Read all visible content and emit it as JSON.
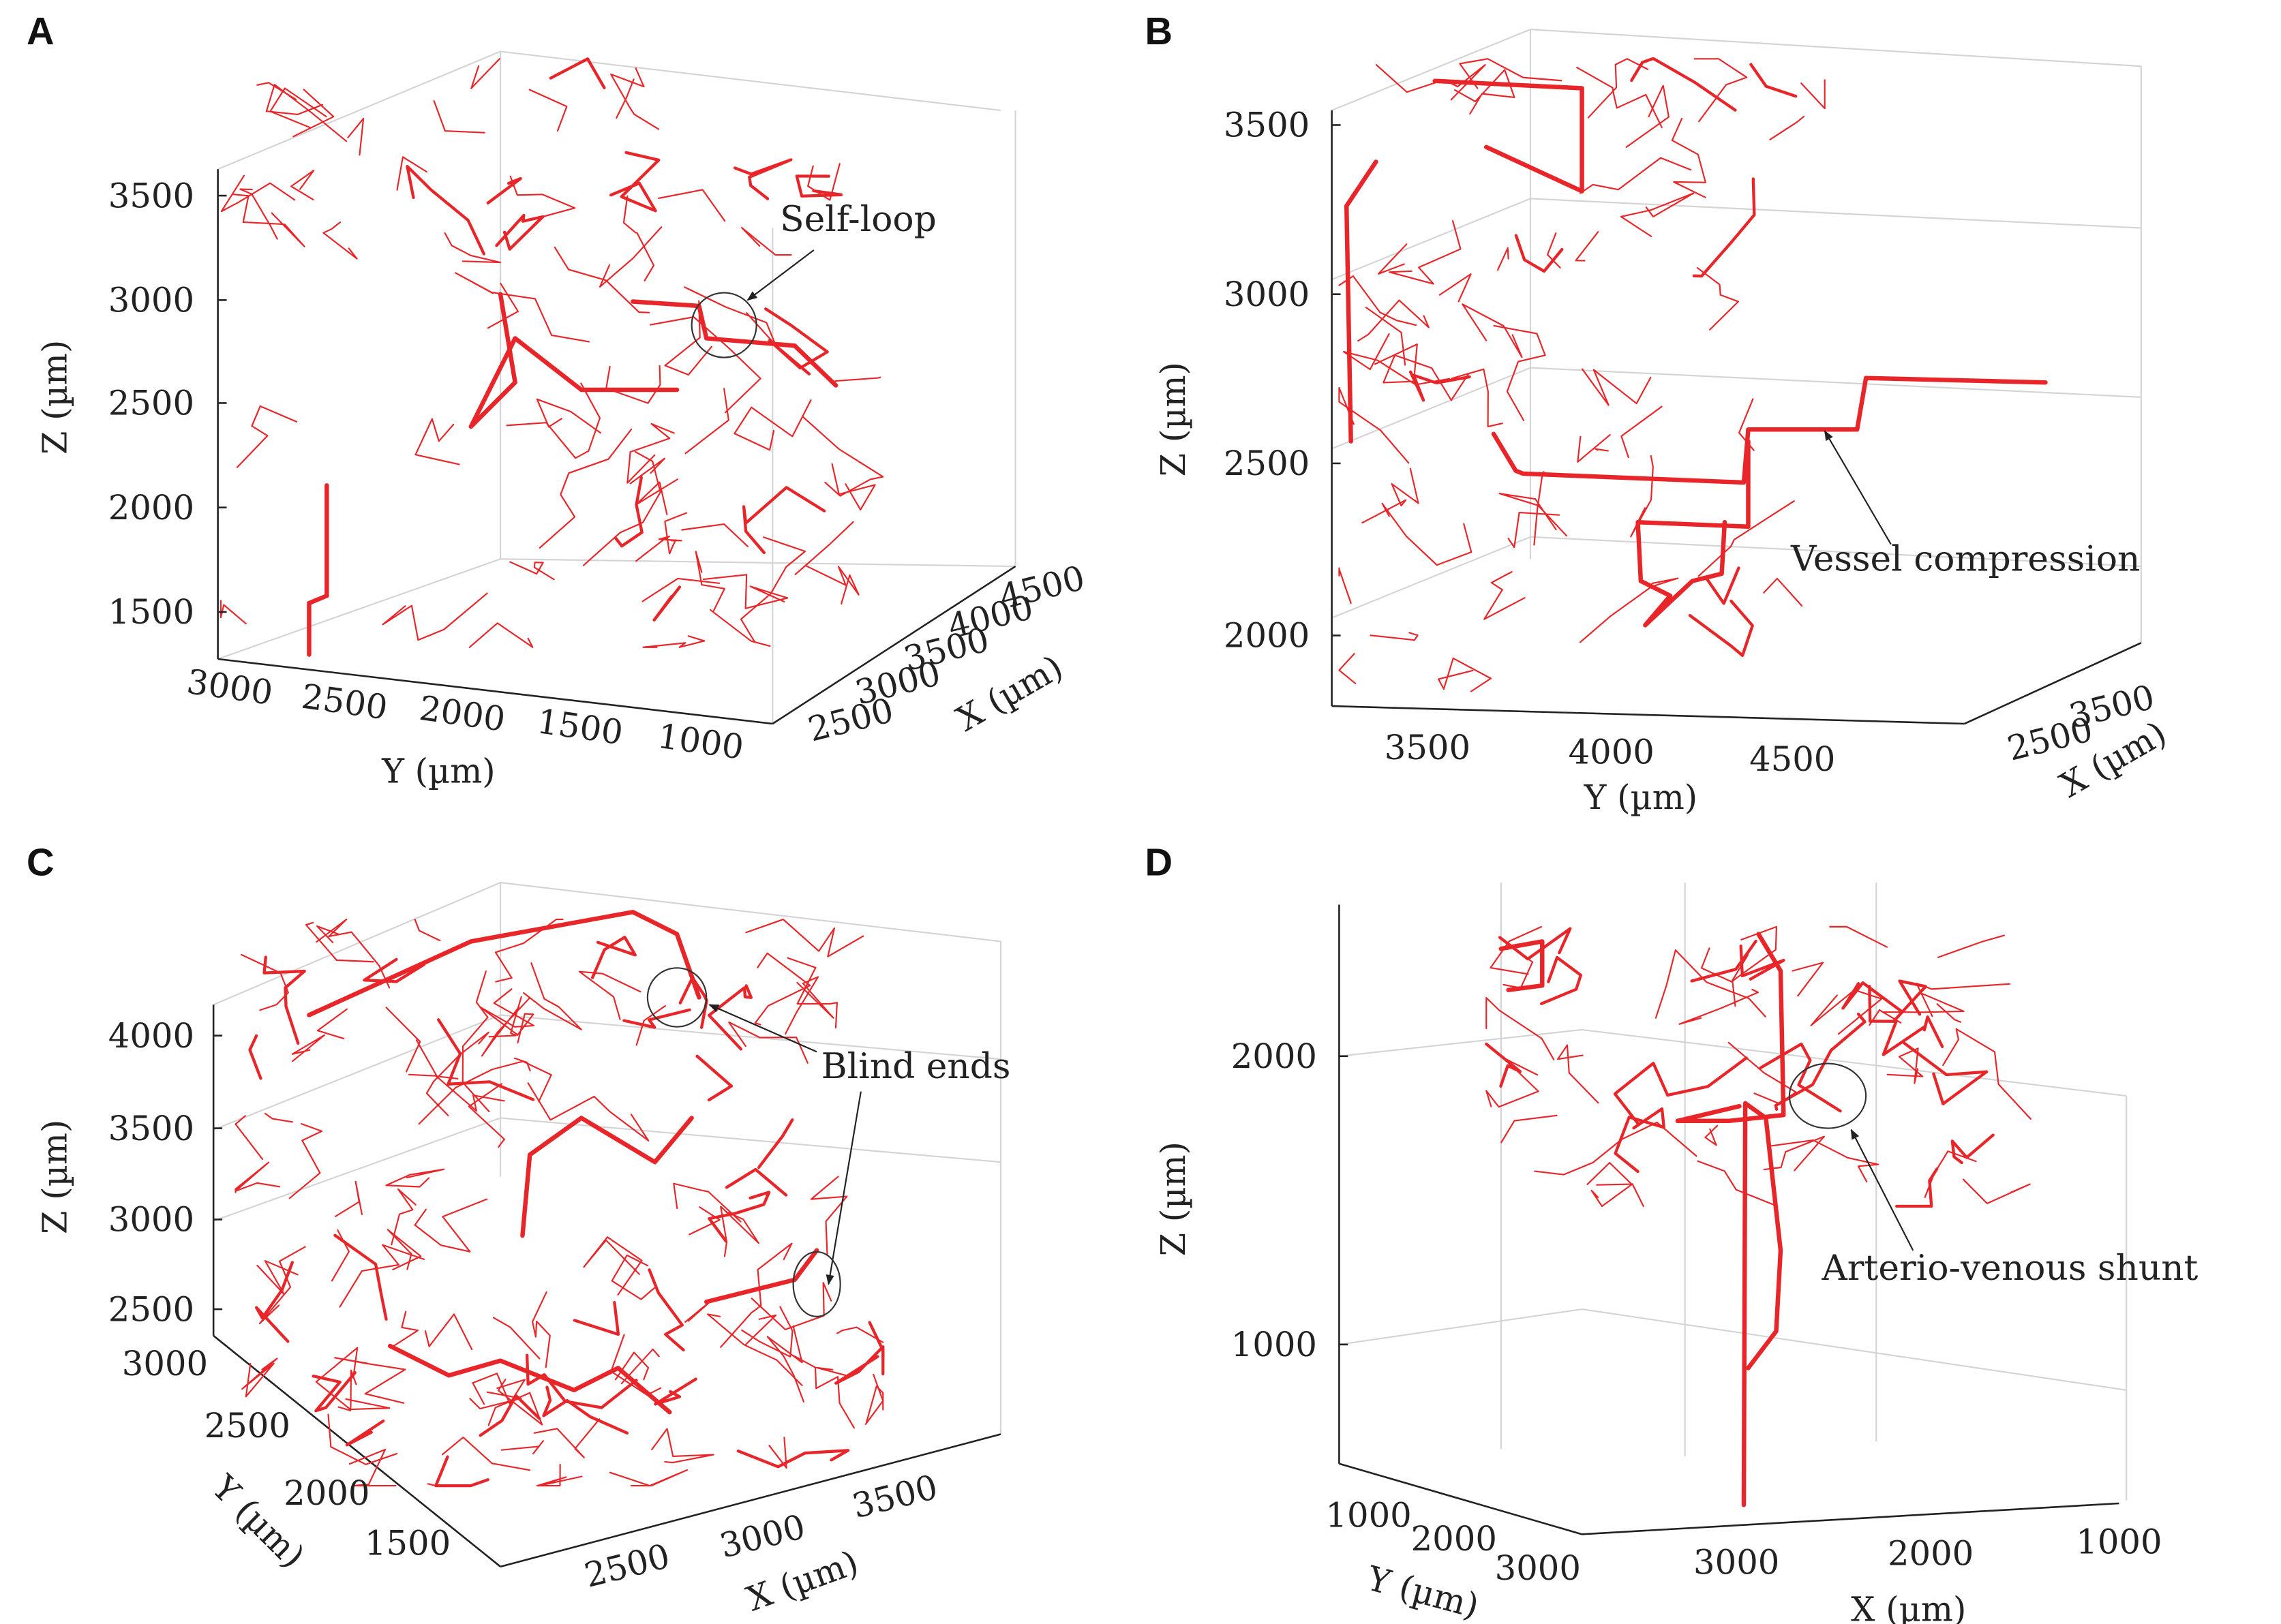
{
  "chart_data": [
    {
      "type": "line",
      "panel": "A",
      "zlabel": "Z (µm)",
      "ylabel": "Y (µm)",
      "xlabel": "X (µm)",
      "zticks": [
        "3500",
        "3000",
        "2500",
        "2000",
        "1500"
      ],
      "yticks": [
        "3000",
        "2500",
        "2000",
        "1500",
        "1000"
      ],
      "xticks": [
        "2500",
        "3000",
        "3500",
        "4000",
        "4500"
      ],
      "annotation": "Self-loop",
      "series_color": "#e8262a"
    },
    {
      "type": "line",
      "panel": "B",
      "zlabel": "Z (µm)",
      "ylabel": "Y (µm)",
      "xlabel": "X (µm)",
      "zticks": [
        "3500",
        "3000",
        "2500",
        "2000"
      ],
      "yticks": [
        "3500",
        "4000",
        "4500"
      ],
      "xticks": [
        "2500",
        "3500"
      ],
      "annotation": "Vessel compression",
      "series_color": "#e8262a"
    },
    {
      "type": "line",
      "panel": "C",
      "zlabel": "Z (µm)",
      "ylabel": "Y (µm)",
      "xlabel": "X (µm)",
      "zticks": [
        "4000",
        "3500",
        "3000",
        "2500"
      ],
      "yticks": [
        "3000",
        "2500",
        "2000",
        "1500"
      ],
      "xticks": [
        "2500",
        "3000",
        "3500"
      ],
      "annotation": "Blind ends",
      "series_color": "#e8262a"
    },
    {
      "type": "line",
      "panel": "D",
      "zlabel": "Z (µm)",
      "ylabel": "Y (µm)",
      "xlabel": "X (µm)",
      "zticks": [
        "2000",
        "1000"
      ],
      "yticks": [
        "1000",
        "2000",
        "3000"
      ],
      "xticks": [
        "3000",
        "2000",
        "1000"
      ],
      "annotation": "Arterio-venous shunt",
      "series_color": "#e8262a"
    }
  ]
}
